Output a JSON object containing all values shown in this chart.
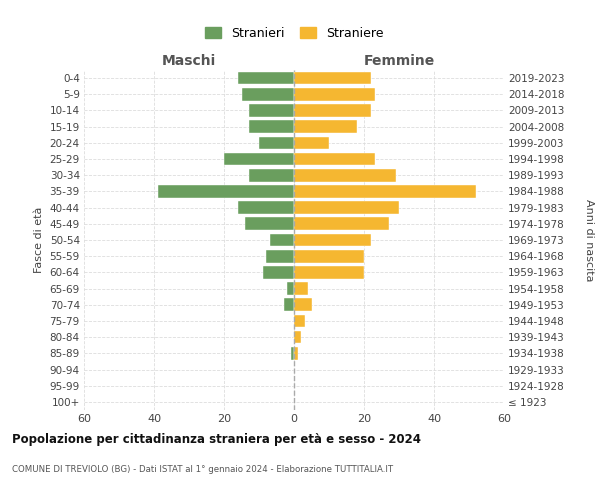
{
  "age_groups": [
    "100+",
    "95-99",
    "90-94",
    "85-89",
    "80-84",
    "75-79",
    "70-74",
    "65-69",
    "60-64",
    "55-59",
    "50-54",
    "45-49",
    "40-44",
    "35-39",
    "30-34",
    "25-29",
    "20-24",
    "15-19",
    "10-14",
    "5-9",
    "0-4"
  ],
  "birth_years": [
    "≤ 1923",
    "1924-1928",
    "1929-1933",
    "1934-1938",
    "1939-1943",
    "1944-1948",
    "1949-1953",
    "1954-1958",
    "1959-1963",
    "1964-1968",
    "1969-1973",
    "1974-1978",
    "1979-1983",
    "1984-1988",
    "1989-1993",
    "1994-1998",
    "1999-2003",
    "2004-2008",
    "2009-2013",
    "2014-2018",
    "2019-2023"
  ],
  "maschi": [
    0,
    0,
    0,
    1,
    0,
    0,
    3,
    2,
    9,
    8,
    7,
    14,
    16,
    39,
    13,
    20,
    10,
    13,
    13,
    15,
    16
  ],
  "femmine": [
    0,
    0,
    0,
    1,
    2,
    3,
    5,
    4,
    20,
    20,
    22,
    27,
    30,
    52,
    29,
    23,
    10,
    18,
    22,
    23,
    22
  ],
  "color_maschi": "#6a9e5e",
  "color_femmine": "#f5b731",
  "xlim": 60,
  "title": "Popolazione per cittadinanza straniera per età e sesso - 2024",
  "subtitle": "COMUNE DI TREVIOLO (BG) - Dati ISTAT al 1° gennaio 2024 - Elaborazione TUTTITALIA.IT",
  "ylabel_left": "Fasce di età",
  "ylabel_right": "Anni di nascita",
  "header_left": "Maschi",
  "header_right": "Femmine",
  "legend_maschi": "Stranieri",
  "legend_femmine": "Straniere",
  "grid_color": "#dddddd"
}
